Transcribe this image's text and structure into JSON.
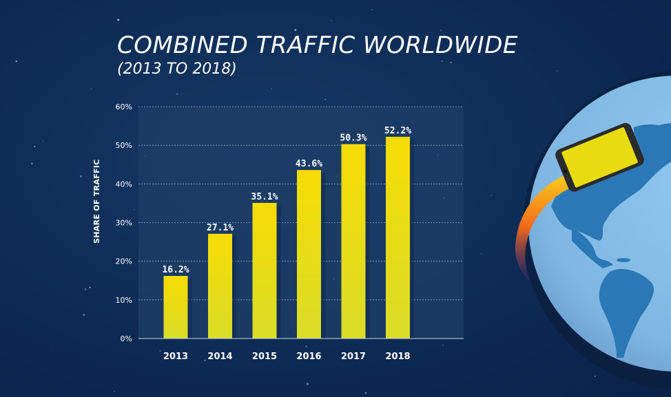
{
  "chart_data": {
    "type": "bar",
    "title": "COMBINED TRAFFIC WORLDWIDE",
    "subtitle": "(2013 TO 2018)",
    "xlabel": "",
    "ylabel": "SHARE OF TRAFFIC",
    "categories": [
      "2013",
      "2014",
      "2015",
      "2016",
      "2017",
      "2018"
    ],
    "values": [
      16.2,
      27.1,
      35.1,
      43.6,
      50.3,
      52.2
    ],
    "data_labels": [
      "16.2%",
      "27.1%",
      "35.1%",
      "43.6%",
      "50.3%",
      "52.2%"
    ],
    "ylim": [
      0,
      60
    ],
    "yticks": [
      0,
      10,
      20,
      30,
      40,
      50,
      60
    ],
    "ytick_labels": [
      "0%",
      "10%",
      "20%",
      "30%",
      "40%",
      "50%",
      "60%"
    ],
    "grid": true,
    "colors": {
      "bar_top": "#f7dc05",
      "bar_bottom": "#d9dc28",
      "background": "#0d2b55",
      "plot_area": "#1c3d66",
      "globe": "#86c1ea",
      "land": "#2a78b5"
    }
  }
}
